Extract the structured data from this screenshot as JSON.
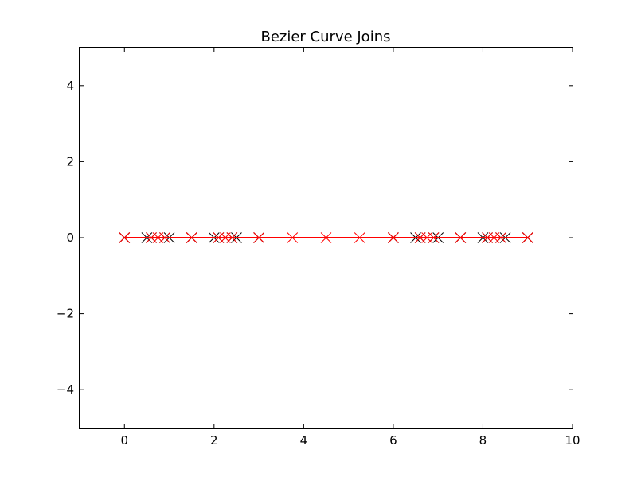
{
  "chart_data": {
    "type": "line",
    "title": "Bezier Curve Joins",
    "xlabel": "",
    "ylabel": "",
    "xlim": [
      -1,
      10
    ],
    "ylim": [
      -5,
      5
    ],
    "x_ticks": [
      0,
      2,
      4,
      6,
      8,
      10
    ],
    "y_ticks": [
      -4,
      -2,
      0,
      2,
      4
    ],
    "x_tick_labels": [
      "0",
      "2",
      "4",
      "6",
      "8",
      "10"
    ],
    "y_tick_labels": [
      "−4",
      "−2",
      "0",
      "2",
      "4"
    ],
    "grid": false,
    "series": [
      {
        "color": "#ff0000",
        "line_style": "dashed",
        "marker": "x",
        "x": [
          0,
          0.75,
          1.5,
          2.25,
          3.0,
          3.75,
          4.5,
          5.25,
          6.0,
          6.75,
          7.5,
          8.25,
          9.0
        ],
        "y": [
          0,
          0,
          0,
          0,
          0,
          0,
          0,
          0,
          0,
          0,
          0,
          0,
          0
        ]
      },
      {
        "color": "#000000",
        "line_style": "solid",
        "marker": "x",
        "x": [
          0,
          0.5,
          0.6,
          0.9,
          1.0,
          1.5,
          2.0,
          2.1,
          2.4,
          2.5,
          3.0,
          6.0,
          6.5,
          6.6,
          6.9,
          7.0,
          7.5,
          8.0,
          8.1,
          8.4,
          8.5,
          9.0
        ],
        "y": [
          0,
          0,
          0,
          0,
          0,
          0,
          0,
          0,
          0,
          0,
          0,
          0,
          0,
          0,
          0,
          0,
          0,
          0,
          0,
          0,
          0,
          0
        ]
      },
      {
        "color": "#ff0000",
        "line_style": "solid",
        "marker": "x",
        "x": [
          0,
          0.6,
          0.9,
          1.5,
          2.1,
          2.4,
          3.0,
          6.0,
          6.6,
          6.9,
          7.5,
          8.1,
          8.4,
          9.0
        ],
        "y": [
          0,
          0,
          0,
          0,
          0,
          0,
          0,
          0,
          0,
          0,
          0,
          0,
          0,
          0
        ]
      }
    ]
  }
}
